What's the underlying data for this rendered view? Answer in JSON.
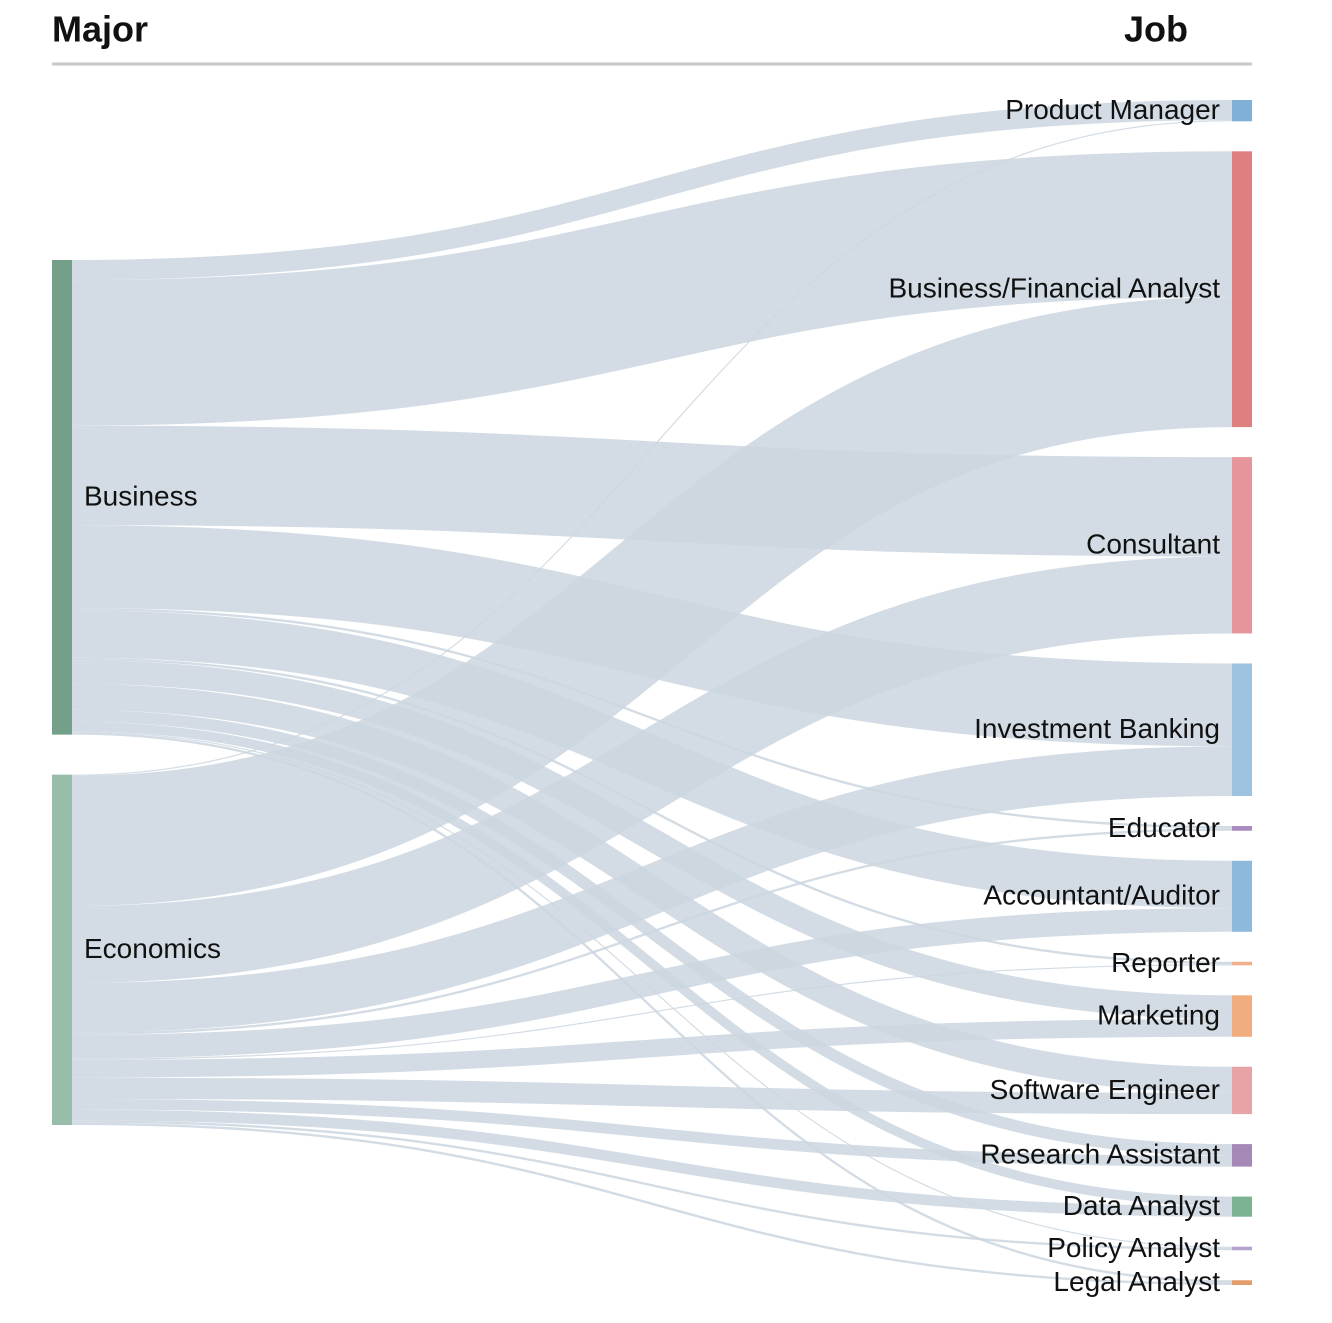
{
  "chart_data": {
    "type": "sankey",
    "source_header": "Major",
    "target_header": "Job",
    "link_color": "#cbd6df",
    "nodes": [
      {
        "name": "Business",
        "color": "#74a08a"
      },
      {
        "name": "Economics",
        "color": "#97bcaa"
      },
      {
        "name": "Product Manager",
        "color": "#7fb0d8"
      },
      {
        "name": "Business/Financial Analyst",
        "color": "#e07f80"
      },
      {
        "name": "Consultant",
        "color": "#e6959a"
      },
      {
        "name": "Investment Banking",
        "color": "#9dc3e1"
      },
      {
        "name": "Educator",
        "color": "#a98bbf"
      },
      {
        "name": "Accountant/Auditor",
        "color": "#8db9dd"
      },
      {
        "name": "Reporter",
        "color": "#f0b08c"
      },
      {
        "name": "Marketing",
        "color": "#f0ad7d"
      },
      {
        "name": "Software Engineer",
        "color": "#e8a3a6"
      },
      {
        "name": "Research Assistant",
        "color": "#a588b5"
      },
      {
        "name": "Data Analyst",
        "color": "#7bb393"
      },
      {
        "name": "Policy Analyst",
        "color": "#b5a3cf"
      },
      {
        "name": "Legal Analyst",
        "color": "#e49c6b"
      }
    ],
    "links": [
      {
        "source": 0,
        "target": 2,
        "value": 17
      },
      {
        "source": 0,
        "target": 3,
        "value": 123
      },
      {
        "source": 0,
        "target": 4,
        "value": 84
      },
      {
        "source": 0,
        "target": 5,
        "value": 70
      },
      {
        "source": 0,
        "target": 6,
        "value": 2
      },
      {
        "source": 0,
        "target": 7,
        "value": 40
      },
      {
        "source": 0,
        "target": 8,
        "value": 2
      },
      {
        "source": 0,
        "target": 9,
        "value": 20
      },
      {
        "source": 0,
        "target": 10,
        "value": 22
      },
      {
        "source": 0,
        "target": 11,
        "value": 10
      },
      {
        "source": 0,
        "target": 12,
        "value": 8
      },
      {
        "source": 0,
        "target": 13,
        "value": 1
      },
      {
        "source": 0,
        "target": 14,
        "value": 2
      },
      {
        "source": 1,
        "target": 2,
        "value": 1
      },
      {
        "source": 1,
        "target": 3,
        "value": 110
      },
      {
        "source": 1,
        "target": 4,
        "value": 65
      },
      {
        "source": 1,
        "target": 5,
        "value": 42
      },
      {
        "source": 1,
        "target": 6,
        "value": 2
      },
      {
        "source": 1,
        "target": 7,
        "value": 20
      },
      {
        "source": 1,
        "target": 8,
        "value": 1
      },
      {
        "source": 1,
        "target": 9,
        "value": 15
      },
      {
        "source": 1,
        "target": 10,
        "value": 18
      },
      {
        "source": 1,
        "target": 11,
        "value": 9
      },
      {
        "source": 1,
        "target": 12,
        "value": 9
      },
      {
        "source": 1,
        "target": 13,
        "value": 2
      },
      {
        "source": 1,
        "target": 14,
        "value": 2
      }
    ]
  }
}
